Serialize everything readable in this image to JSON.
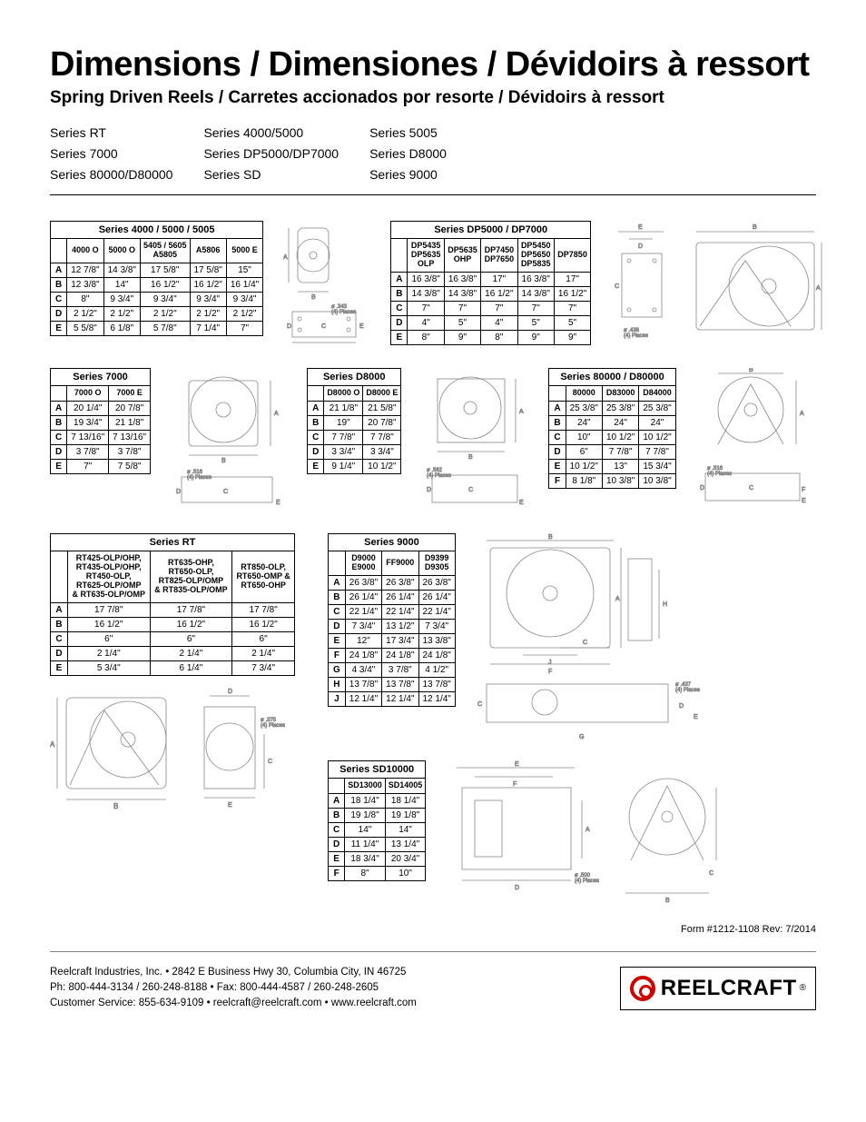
{
  "title": "Dimensions / Dimensiones / Dévidoirs à ressort",
  "subtitle": "Spring Driven Reels / Carretes accionados por resorte / Dévidoirs à ressort",
  "series_list": [
    [
      "Series RT",
      "Series 7000",
      "Series 80000/D80000"
    ],
    [
      "Series 4000/5000",
      "Series DP5000/DP7000",
      "Series SD"
    ],
    [
      "Series 5005",
      "Series D8000",
      "Series 9000"
    ]
  ],
  "tables": {
    "s4000": {
      "title": "Series 4000 / 5000 / 5005",
      "cols": [
        "4000 O",
        "5000 O",
        "5405 / 5605\nA5805",
        "A5806",
        "5000 E"
      ],
      "rows": [
        [
          "A",
          "12 7/8\"",
          "14 3/8\"",
          "17 5/8\"",
          "17 5/8\"",
          "15\""
        ],
        [
          "B",
          "12 3/8\"",
          "14\"",
          "16 1/2\"",
          "16 1/2\"",
          "16 1/4\""
        ],
        [
          "C",
          "8\"",
          "9 3/4\"",
          "9 3/4\"",
          "9 3/4\"",
          "9 3/4\""
        ],
        [
          "D",
          "2 1/2\"",
          "2 1/2\"",
          "2 1/2\"",
          "2 1/2\"",
          "2 1/2\""
        ],
        [
          "E",
          "5 5/8\"",
          "6 1/8\"",
          "5 7/8\"",
          "7 1/4\"",
          "7\""
        ]
      ]
    },
    "dp5000": {
      "title": "Series DP5000 / DP7000",
      "cols": [
        "DP5435\nDP5635\nOLP",
        "DP5635\nOHP",
        "DP7450\nDP7650",
        "DP5450\nDP5650\nDP5835",
        "DP7850"
      ],
      "rows": [
        [
          "A",
          "16 3/8\"",
          "16 3/8\"",
          "17\"",
          "16 3/8\"",
          "17\""
        ],
        [
          "B",
          "14 3/8\"",
          "14 3/8\"",
          "16 1/2\"",
          "14 3/8\"",
          "16 1/2\""
        ],
        [
          "C",
          "7\"",
          "7\"",
          "7\"",
          "7\"",
          "7\""
        ],
        [
          "D",
          "4\"",
          "5\"",
          "4\"",
          "5\"",
          "5\""
        ],
        [
          "E",
          "8\"",
          "9\"",
          "8\"",
          "9\"",
          "9\""
        ]
      ]
    },
    "s7000": {
      "title": "Series 7000",
      "cols": [
        "7000 O",
        "7000 E"
      ],
      "rows": [
        [
          "A",
          "20 1/4\"",
          "20 7/8\""
        ],
        [
          "B",
          "19 3/4\"",
          "21 1/8\""
        ],
        [
          "C",
          "7 13/16\"",
          "7 13/16\""
        ],
        [
          "D",
          "3 7/8\"",
          "3 7/8\""
        ],
        [
          "E",
          "7\"",
          "7 5/8\""
        ]
      ]
    },
    "d8000": {
      "title": "Series D8000",
      "cols": [
        "D8000 O",
        "D8000 E"
      ],
      "rows": [
        [
          "A",
          "21 1/8\"",
          "21 5/8\""
        ],
        [
          "B",
          "19\"",
          "20 7/8\""
        ],
        [
          "C",
          "7 7/8\"",
          "7 7/8\""
        ],
        [
          "D",
          "3 3/4\"",
          "3 3/4\""
        ],
        [
          "E",
          "9 1/4\"",
          "10 1/2\""
        ]
      ]
    },
    "s80000": {
      "title": "Series 80000 / D80000",
      "cols": [
        "80000",
        "D83000",
        "D84000"
      ],
      "rows": [
        [
          "A",
          "25 3/8\"",
          "25 3/8\"",
          "25 3/8\""
        ],
        [
          "B",
          "24\"",
          "24\"",
          "24\""
        ],
        [
          "C",
          "10\"",
          "10 1/2\"",
          "10 1/2\""
        ],
        [
          "D",
          "6\"",
          "7 7/8\"",
          "7 7/8\""
        ],
        [
          "E",
          "10 1/2\"",
          "13\"",
          "15 3/4\""
        ],
        [
          "F",
          "8 1/8\"",
          "10 3/8\"",
          "10 3/8\""
        ]
      ]
    },
    "rt": {
      "title": "Series RT",
      "cols": [
        "RT425-OLP/OHP,\nRT435-OLP/OHP,\nRT450-OLP,\nRT625-OLP/OMP\n& RT635-OLP/OMP",
        "RT635-OHP,\nRT650-OLP,\nRT825-OLP/OMP\n& RT835-OLP/OMP",
        "RT850-OLP,\nRT650-OMP &\nRT650-OHP"
      ],
      "rows": [
        [
          "A",
          "17 7/8\"",
          "17 7/8\"",
          "17 7/8\""
        ],
        [
          "B",
          "16 1/2\"",
          "16 1/2\"",
          "16 1/2\""
        ],
        [
          "C",
          "6\"",
          "6\"",
          "6\""
        ],
        [
          "D",
          "2 1/4\"",
          "2 1/4\"",
          "2 1/4\""
        ],
        [
          "E",
          "5 3/4\"",
          "6 1/4\"",
          "7 3/4\""
        ]
      ]
    },
    "s9000": {
      "title": "Series 9000",
      "cols": [
        "D9000\nE9000",
        "FF9000",
        "D9399\nD9305"
      ],
      "rows": [
        [
          "A",
          "26 3/8\"",
          "26 3/8\"",
          "26 3/8\""
        ],
        [
          "B",
          "26 1/4\"",
          "26 1/4\"",
          "26 1/4\""
        ],
        [
          "C",
          "22 1/4\"",
          "22 1/4\"",
          "22 1/4\""
        ],
        [
          "D",
          "7 3/4\"",
          "13 1/2\"",
          "7 3/4\""
        ],
        [
          "E",
          "12\"",
          "17 3/4\"",
          "13 3/8\""
        ],
        [
          "F",
          "24 1/8\"",
          "24 1/8\"",
          "24 1/8\""
        ],
        [
          "G",
          "4 3/4\"",
          "3 7/8\"",
          "4 1/2\""
        ],
        [
          "H",
          "13 7/8\"",
          "13 7/8\"",
          "13 7/8\""
        ],
        [
          "J",
          "12 1/4\"",
          "12 1/4\"",
          "12 1/4\""
        ]
      ]
    },
    "sd10000": {
      "title": "Series SD10000",
      "cols": [
        "SD13000",
        "SD14005"
      ],
      "rows": [
        [
          "A",
          "18 1/4\"",
          "18 1/4\""
        ],
        [
          "B",
          "19 1/8\"",
          "19 1/8\""
        ],
        [
          "C",
          "14\"",
          "14\""
        ],
        [
          "D",
          "11 1/4\"",
          "13 1/4\""
        ],
        [
          "E",
          "18 3/4\"",
          "20 3/4\""
        ],
        [
          "F",
          "8\"",
          "10\""
        ]
      ]
    }
  },
  "diagrams": {
    "hole_343": "ø .343\n(4) Places",
    "hole_438": "ø .438\n(4) Places",
    "hole_516": "ø .516\n(4) Places",
    "hole_562": "ø .562\n(4) Places",
    "hole_375": "ø .375\n(4) Places",
    "hole_437": "ø .437\n(4) Places",
    "hole_500": "ø .500\n(4) Places"
  },
  "form_no": "Form #1212-1108   Rev: 7/2014",
  "footer": {
    "line1": "Reelcraft Industries, Inc.  •  2842 E Business Hwy 30, Columbia City, IN 46725",
    "line2": "Ph: 800-444-3134 / 260-248-8188  •  Fax: 800-444-4587 / 260-248-2605",
    "line3": "Customer Service: 855-634-9109  •  reelcraft@reelcraft.com  •  www.reelcraft.com"
  },
  "logo_text": "REELCRAFT",
  "colors": {
    "line": "#000000",
    "accent": "#cc0000",
    "diagram": "#808080"
  }
}
